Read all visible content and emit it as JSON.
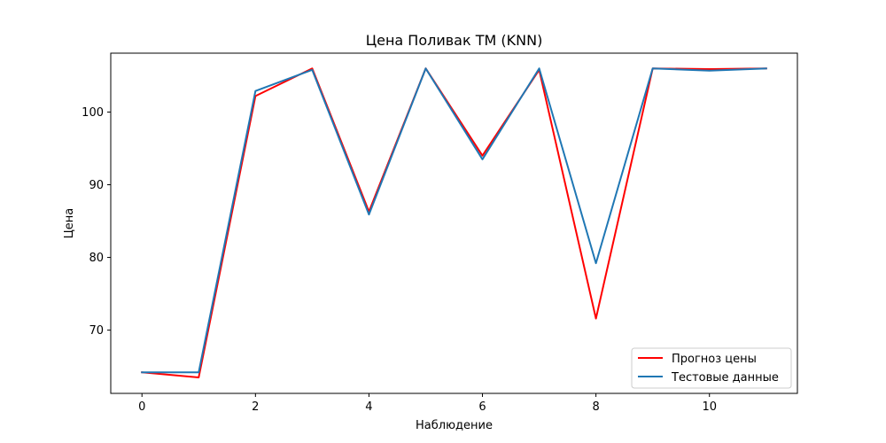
{
  "chart_data": {
    "type": "line",
    "title": "Цена Поливак ТМ (KNN)",
    "xlabel": "Наблюдение",
    "ylabel": "Цена",
    "x": [
      0,
      1,
      2,
      3,
      4,
      5,
      6,
      7,
      8,
      9,
      10,
      11
    ],
    "xlim": [
      -0.55,
      11.55
    ],
    "ylim": [
      61.3,
      108.1
    ],
    "xticks": [
      0,
      2,
      4,
      6,
      8,
      10
    ],
    "yticks": [
      70,
      80,
      90,
      100
    ],
    "grid": false,
    "legend_position": "lower-right",
    "series": [
      {
        "name": "Прогноз цены",
        "color": "#ff0000",
        "values": [
          64.2,
          63.5,
          102.2,
          106.0,
          86.3,
          106.0,
          94.0,
          105.8,
          71.6,
          106.0,
          105.9,
          106.0
        ]
      },
      {
        "name": "Тестовые данные",
        "color": "#1f77b4",
        "values": [
          64.2,
          64.2,
          102.9,
          105.8,
          85.9,
          106.0,
          93.5,
          106.0,
          79.2,
          106.0,
          105.7,
          106.0
        ]
      }
    ]
  }
}
